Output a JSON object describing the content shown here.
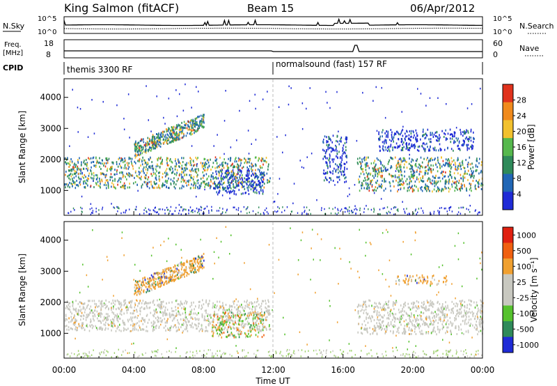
{
  "header": {
    "station": "King Salmon (fitACF)",
    "beam": "Beam 15",
    "date": "06/Apr/2012"
  },
  "noise_panel": {
    "left_label": "N.Sky",
    "right_label": "N.Search",
    "left_ticks": [
      "10^5",
      "10^0"
    ],
    "right_ticks": [
      "10^5",
      "10^0"
    ]
  },
  "freq_panel": {
    "left_label_line1": "Freq.",
    "left_label_line2": "[MHz]",
    "right_label": "Nave",
    "left_ticks": [
      "18",
      "8"
    ],
    "right_ticks": [
      "60",
      "0"
    ]
  },
  "cpid": {
    "label": "CPID",
    "segments": [
      {
        "name": "themis 3300 RF",
        "start_hour": 0
      },
      {
        "name": "normalsound (fast) 157 RF",
        "start_hour": 12
      }
    ]
  },
  "chart_data": [
    {
      "type": "heatmap",
      "panel": "power",
      "ylabel": "Slant Range [km]",
      "yticks": [
        1000,
        2000,
        3000,
        4000
      ],
      "ylim": [
        200,
        4600
      ],
      "xlim_hours": [
        0,
        24
      ],
      "colorbar": {
        "label": "Power [dB]",
        "ticks": [
          "4",
          "8",
          "12",
          "16",
          "20",
          "24",
          "28"
        ],
        "colors": [
          "#1f2bd6",
          "#2166b5",
          "#2f8a5a",
          "#56b84d",
          "#f2c12e",
          "#f08a1c",
          "#e0321c"
        ]
      },
      "scatter_bands": [
        {
          "from_hour": 0.0,
          "to_hour": 11.8,
          "range_from": 1100,
          "range_to": 2100,
          "level": "medium"
        },
        {
          "from_hour": 4.0,
          "to_hour": 8.0,
          "range_from": 2100,
          "range_to": 3400,
          "level": "medium"
        },
        {
          "from_hour": 8.5,
          "to_hour": 11.5,
          "range_from": 900,
          "range_to": 1700,
          "level": "low"
        },
        {
          "from_hour": 16.8,
          "to_hour": 24.0,
          "range_from": 1000,
          "range_to": 2100,
          "level": "medium"
        },
        {
          "from_hour": 18.0,
          "to_hour": 23.5,
          "range_from": 2300,
          "range_to": 3000,
          "level": "low"
        },
        {
          "from_hour": 14.8,
          "to_hour": 16.2,
          "range_from": 1300,
          "range_to": 2800,
          "level": "low"
        }
      ]
    },
    {
      "type": "heatmap",
      "panel": "velocity",
      "xlabel": "Time UT",
      "ylabel": "Slant Range [km]",
      "yticks": [
        1000,
        2000,
        3000,
        4000
      ],
      "ylim": [
        200,
        4600
      ],
      "xlim_hours": [
        0,
        24
      ],
      "xticks": [
        "00:00",
        "04:00",
        "08:00",
        "12:00",
        "16:00",
        "20:00",
        "00:00"
      ],
      "colorbar": {
        "label": "Velocity [m s⁻¹]",
        "ticks": [
          "1000",
          "500",
          "100",
          "25",
          "-25",
          "-100",
          "-500",
          "-1000"
        ],
        "colors": [
          "#1f2bd6",
          "#2f8a5a",
          "#56c22e",
          "#c8c8c0",
          "#c8c8c0",
          "#f0a030",
          "#f06010",
          "#e02010"
        ]
      },
      "scatter_bands": [
        {
          "from_hour": 0.0,
          "to_hour": 11.8,
          "range_from": 1100,
          "range_to": 2100,
          "level": "gray"
        },
        {
          "from_hour": 4.0,
          "to_hour": 8.0,
          "range_from": 2200,
          "range_to": 3400,
          "level": "orange"
        },
        {
          "from_hour": 8.5,
          "to_hour": 11.5,
          "range_from": 900,
          "range_to": 1700,
          "level": "mixed"
        },
        {
          "from_hour": 16.8,
          "to_hour": 24.0,
          "range_from": 1000,
          "range_to": 2100,
          "level": "gray"
        },
        {
          "from_hour": 19.0,
          "to_hour": 22.0,
          "range_from": 2600,
          "range_to": 2900,
          "level": "orange"
        }
      ]
    }
  ]
}
